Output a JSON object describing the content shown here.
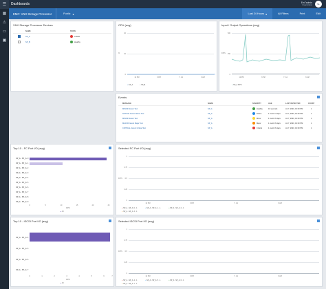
{
  "sidebar": {
    "icons": [
      "menu-icon",
      "alert-icon",
      "device-icon",
      "briefcase-icon"
    ]
  },
  "topbar": {
    "title": "Dashboards",
    "user_name": "Em7admin",
    "user_org": "Organization",
    "logo_text": "SL"
  },
  "subbar": {
    "page_name": "EMC: VNX Storage Processor",
    "visibility": "Public",
    "visibility_caret": "▾",
    "time_range": "Last 24 Hours",
    "time_caret": "▾",
    "filters": "All Filters",
    "print": "Print",
    "edit": "Edit"
  },
  "devices": {
    "title": "VNX Storage Processor Devices",
    "col_name": "NAME",
    "col_state": "STATE",
    "rows": [
      {
        "name": "SP_A",
        "state": "Critical",
        "color": "#e53935",
        "checked": true
      },
      {
        "name": "SP_B",
        "state": "Healthy",
        "color": "#43a047",
        "checked": false
      }
    ]
  },
  "cpu": {
    "title": "CPU (avg)",
    "ylabel": "%",
    "yticks": [
      "40",
      "20",
      "0"
    ],
    "xticks": [
      "12 PM",
      "6 PM",
      "7. Jul",
      "6 AM"
    ],
    "legend": [
      "SP_A",
      "SP_B"
    ]
  },
  "io": {
    "title": "Input / Output Operations (avg)",
    "ylabel": "IOPS",
    "yticks": [
      "500",
      "250",
      "0"
    ],
    "xticks": [
      "12 PM",
      "6 PM",
      "7. Jul",
      "6 AM"
    ],
    "legend": [
      "SP_A IOPS"
    ]
  },
  "events": {
    "title": "Events",
    "headers": [
      "MESSAGE",
      "NAME",
      "SEVERITY",
      "AGE",
      "LAST DETECTED",
      "COUNT"
    ],
    "rows": [
      {
        "message": "MINOR: Event Text",
        "name": "SP_A",
        "severity": "Healthy",
        "color": "#43a047",
        "age": "10 seconds",
        "detected": "Jul 7, 2020, 10:00 PM",
        "count": "1"
      },
      {
        "message": "NOTICE: Event Notice Text",
        "name": "SP_A",
        "severity": "Notice",
        "color": "#1e88e5",
        "age": "1 month 4 days",
        "detected": "Jul 7, 2020, 10:00 PM",
        "count": "1"
      },
      {
        "message": "MINOR: Event Text",
        "name": "SP_A",
        "severity": "Minor",
        "color": "#fdd835",
        "age": "1 month 6 days",
        "detected": "Jul 7, 2020, 10:00 PM",
        "count": "1"
      },
      {
        "message": "MAJOR: Event Major Text",
        "name": "SP_A",
        "severity": "Major",
        "color": "#fb8c00",
        "age": "1 month 6 days",
        "detected": "Jul 7, 2020, 10:00 PM",
        "count": "1"
      },
      {
        "message": "CRITICAL: Event Critical Text",
        "name": "SP_A",
        "severity": "Critical",
        "color": "#e53935",
        "age": "1 month 6 days",
        "detected": "Jul 7, 2020, 10:00 PM",
        "count": "1"
      }
    ]
  },
  "fc_top": {
    "title": "Top 10 - FC Port I/O (avg)",
    "rows": [
      "SP_A - SP_A: 0",
      "SP_A - SP_A: 1",
      "SP_A - SP_A: 2",
      "SP_A - SP_A: 3",
      "SP_A - SP_A: 4",
      "SP_A - SP_A: 5",
      "SP_A - SP_A: 6",
      "SP_A - SP_A: 7",
      "SP_A - SP_A: 8",
      "SP_A - SP_A: 9"
    ],
    "xticks": [
      "0",
      "5",
      "10",
      "15",
      "20",
      "25"
    ],
    "xlabel": "IOPS",
    "legend": "IO"
  },
  "fc_sel": {
    "title": "Selected FC Port I/O (avg)",
    "ylabel": "IOPS",
    "yticks": [
      "1",
      "0.75",
      "0.5",
      "0.25",
      "0"
    ],
    "xticks": [
      "12 PM",
      "6 PM",
      "7. Jul",
      "6 AM"
    ],
    "legend": [
      "SP_A - SP_A: 0 - 1",
      "SP_A - SP_A: 1 - 1",
      "SP_A - SP_A: 2 - 1",
      "SP_A - SP_A: 3 - 1"
    ]
  },
  "iscsi_top": {
    "title": "Top 10 - iSCSI Port I/O (avg)",
    "rows": [
      "SP_A - SP_A: 4",
      "SP_A - SP_A: 5",
      "SP_A - SP_A: 6",
      "SP_A - SP_A: 7"
    ],
    "xticks": [
      "0",
      "1",
      "2",
      "3",
      "4",
      "5",
      "6",
      "7"
    ],
    "xlabel": "IOPS",
    "legend": "IO"
  },
  "iscsi_sel": {
    "title": "Selected iSCSI Port I/O (avg)",
    "ylabel": "IOPS",
    "yticks": [
      "1",
      "0.75",
      "0.5",
      "0.25",
      "0"
    ],
    "xticks": [
      "12 PM",
      "6 PM",
      "7. Jul",
      "6 AM"
    ],
    "legend": [
      "SP_A - SP_A: 4 - 1",
      "SP_A - SP_A: 5 - 1",
      "SP_A - SP_A: 6 - 1",
      "SP_A - SP_A: 7 - 1"
    ]
  },
  "chart_data": [
    {
      "type": "line",
      "title": "CPU (avg)",
      "ylabel": "%",
      "ylim": [
        0,
        40
      ],
      "x": [
        "12 PM",
        "6 PM",
        "7. Jul",
        "6 AM"
      ],
      "series": [
        {
          "name": "SP_A",
          "values": [
            1,
            1,
            1,
            1
          ]
        },
        {
          "name": "SP_B",
          "values": [
            1,
            1,
            1,
            1
          ]
        }
      ]
    },
    {
      "type": "line",
      "title": "Input / Output Operations (avg)",
      "ylabel": "IOPS",
      "ylim": [
        0,
        500
      ],
      "x": [
        "12 PM",
        "6 PM",
        "7. Jul",
        "6 AM"
      ],
      "series": [
        {
          "name": "SP_A IOPS",
          "values": [
            310,
            290,
            300,
            300
          ]
        }
      ]
    },
    {
      "type": "bar",
      "title": "Top 10 - FC Port I/O (avg)",
      "xlabel": "IOPS",
      "categories": [
        "SP_A - SP_A: 0",
        "SP_A - SP_A: 1"
      ],
      "values": [
        24,
        10
      ]
    },
    {
      "type": "line",
      "title": "Selected FC Port I/O (avg)",
      "ylabel": "IOPS",
      "ylim": [
        0,
        1
      ],
      "x": [
        "12 PM",
        "6 PM",
        "7. Jul",
        "6 AM"
      ],
      "series": []
    },
    {
      "type": "bar",
      "title": "Top 10 - iSCSI Port I/O (avg)",
      "xlabel": "IOPS",
      "categories": [
        "SP_A - SP_A: 4"
      ],
      "values": [
        6.5
      ]
    },
    {
      "type": "line",
      "title": "Selected iSCSI Port I/O (avg)",
      "ylabel": "IOPS",
      "ylim": [
        0,
        1
      ],
      "x": [
        "12 PM",
        "6 PM",
        "7. Jul",
        "6 AM"
      ],
      "series": []
    }
  ]
}
